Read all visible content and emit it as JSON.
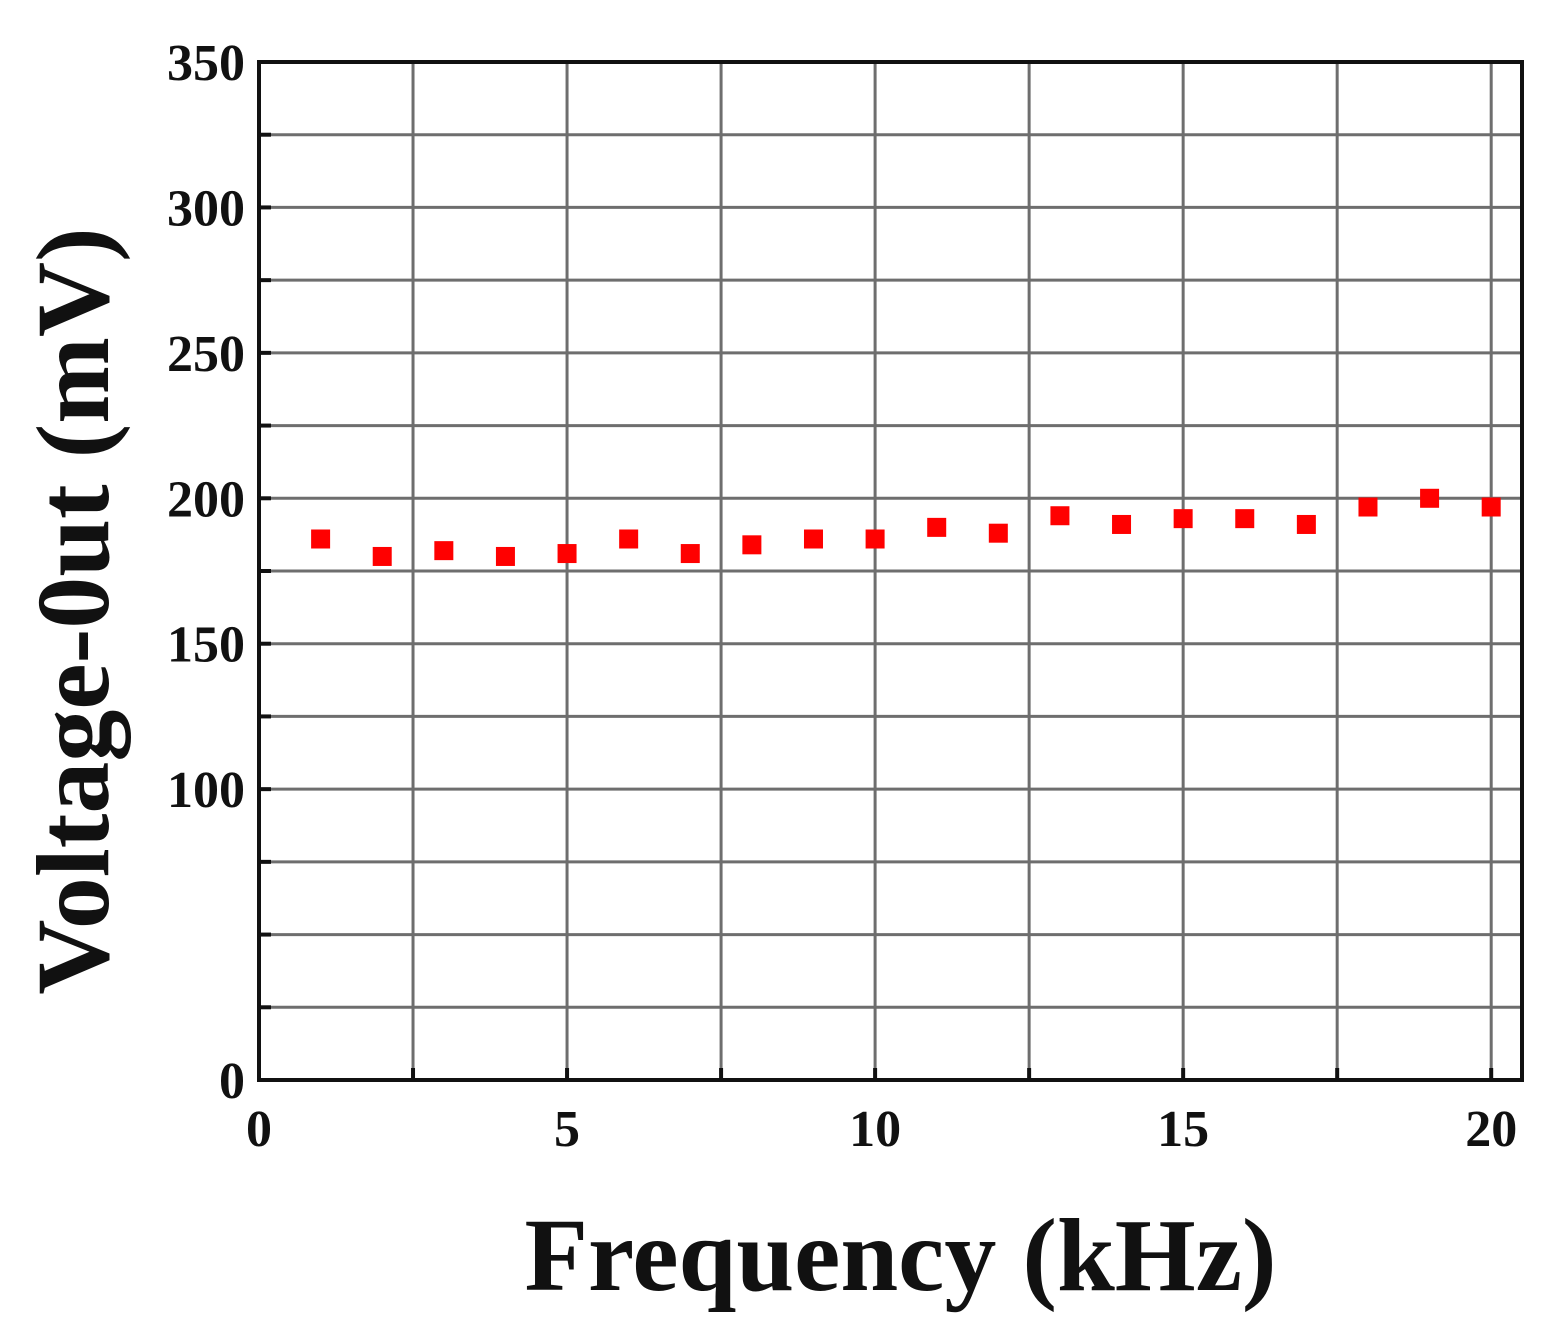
{
  "chart_data": {
    "type": "scatter",
    "xlabel": "Frequency (kHz)",
    "ylabel": "Voltage-0ut (mV)",
    "xlim": [
      0,
      20.5
    ],
    "ylim": [
      0,
      350
    ],
    "x_ticks": [
      0,
      5,
      10,
      15,
      20
    ],
    "y_ticks": [
      0,
      100,
      150,
      200,
      250,
      300,
      350
    ],
    "x_gridlines": [
      0,
      2.5,
      5,
      7.5,
      10,
      12.5,
      15,
      17.5,
      20
    ],
    "y_gridlines": [
      0,
      25,
      50,
      75,
      100,
      125,
      150,
      175,
      200,
      225,
      250,
      275,
      300,
      325,
      350
    ],
    "grid": true,
    "marker": "square",
    "marker_color": "#ff0000",
    "series": [
      {
        "x": [
          1,
          2,
          3,
          4,
          5,
          6,
          7,
          8,
          9,
          10,
          11,
          12,
          13,
          14,
          15,
          16,
          17,
          18,
          19,
          20
        ],
        "y": [
          186,
          180,
          182,
          180,
          181,
          186,
          181,
          184,
          186,
          186,
          190,
          188,
          194,
          191,
          193,
          193,
          191,
          197,
          200,
          197
        ]
      }
    ]
  }
}
